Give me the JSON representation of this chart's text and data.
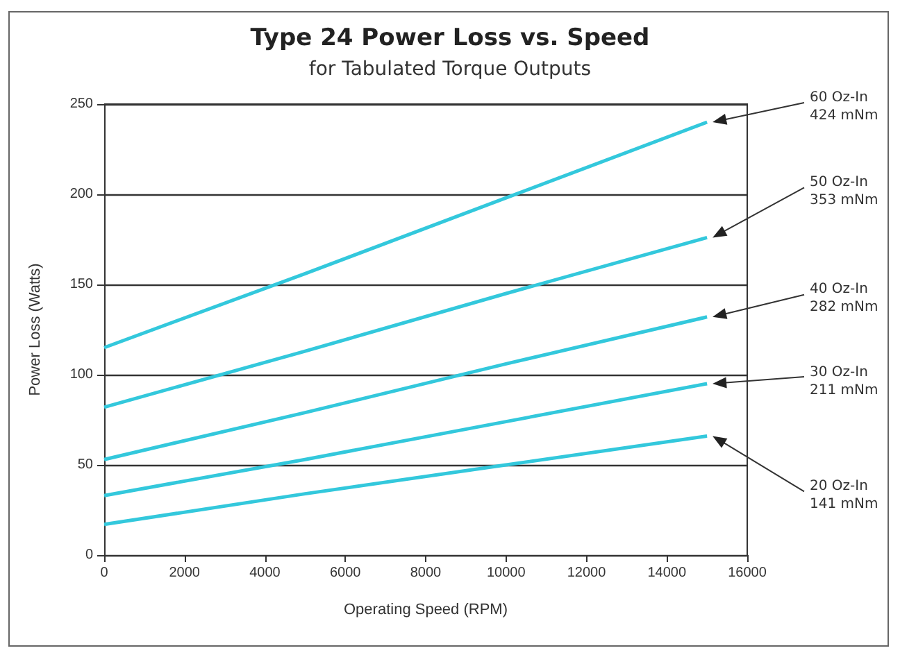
{
  "chart_data": {
    "type": "line",
    "title": "Type 24 Power Loss vs. Speed",
    "subtitle": "for Tabulated Torque Outputs",
    "xlabel": "Operating Speed (RPM)",
    "ylabel": "Power Loss (Watts)",
    "x": [
      0,
      5000,
      10000,
      15000
    ],
    "series": [
      {
        "name": "60 Oz-In\n424 mNm",
        "color": "#33c8dc",
        "values": [
          115,
          156,
          198,
          240
        ]
      },
      {
        "name": "50 Oz-In\n353 mNm",
        "color": "#33c8dc",
        "values": [
          82,
          113,
          145,
          176
        ]
      },
      {
        "name": "40 Oz-In\n282 mNm",
        "color": "#33c8dc",
        "values": [
          53,
          79,
          106,
          132
        ]
      },
      {
        "name": "30 Oz-In\n211 mNm",
        "color": "#33c8dc",
        "values": [
          33,
          53,
          74,
          95
        ]
      },
      {
        "name": "20 Oz-In\n141 mNm",
        "color": "#33c8dc",
        "values": [
          17,
          34,
          50,
          66
        ]
      }
    ],
    "xlim": [
      0,
      16000
    ],
    "xticks": [
      0,
      2000,
      4000,
      6000,
      8000,
      10000,
      12000,
      14000,
      16000
    ],
    "ylim": [
      0,
      250
    ],
    "yticks": [
      0,
      50,
      100,
      150,
      200,
      250
    ],
    "grid": "y",
    "legend": false,
    "marker": "none",
    "line_style": "solid"
  }
}
